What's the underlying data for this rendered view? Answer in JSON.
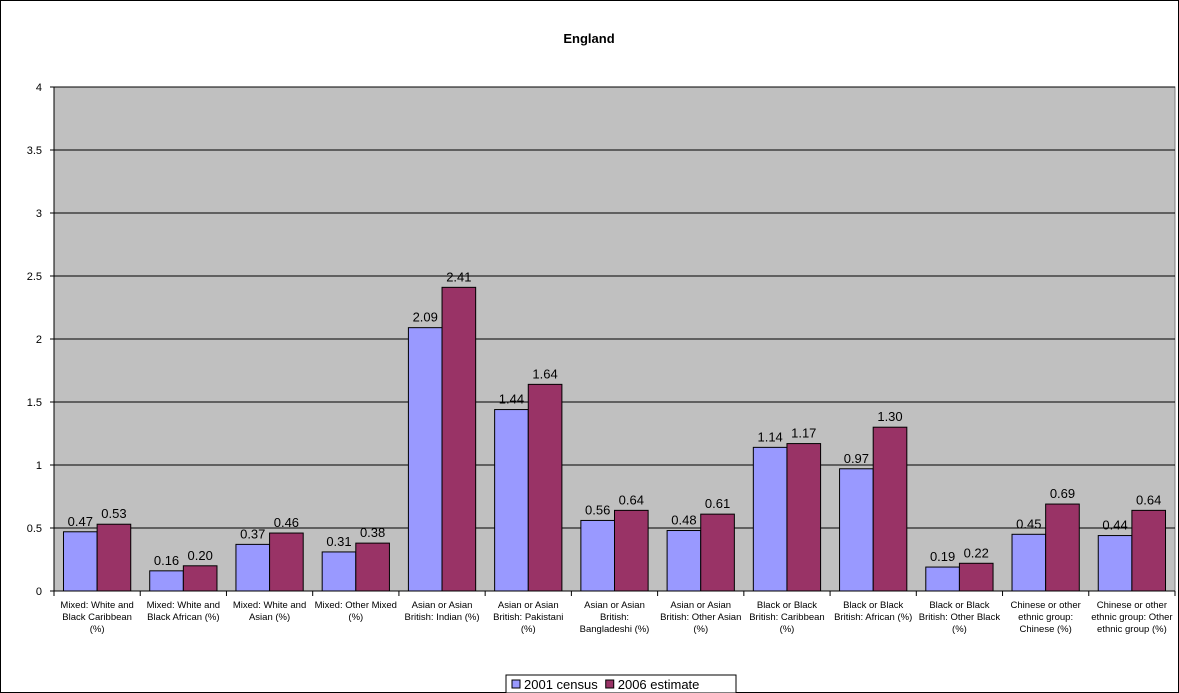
{
  "chart_data": {
    "type": "bar",
    "title": "England",
    "xlabel": "",
    "ylabel": "",
    "ylim": [
      0,
      4
    ],
    "yticks": [
      "0",
      "0.5",
      "1",
      "1.5",
      "2",
      "2.5",
      "3",
      "3.5",
      "4"
    ],
    "grid": true,
    "legend_position": "bottom",
    "categories": [
      "Mixed: White and Black Caribbean (%)",
      "Mixed: White and Black African (%)",
      "Mixed: White and Asian (%)",
      "Mixed: Other Mixed (%)",
      "Asian or Asian British: Indian (%)",
      "Asian or Asian British: Pakistani (%)",
      "Asian or Asian British: Bangladeshi (%)",
      "Asian or Asian British: Other Asian (%)",
      "Black or Black British: Caribbean (%)",
      "Black or Black British: African (%)",
      "Black or Black British: Other Black (%)",
      "Chinese or other ethnic group: Chinese (%)",
      "Chinese or other ethnic group: Other ethnic group (%)"
    ],
    "series": [
      {
        "name": "2001 census",
        "color": "#9999ff",
        "values": [
          0.47,
          0.16,
          0.37,
          0.31,
          2.09,
          1.44,
          0.56,
          0.48,
          1.14,
          0.97,
          0.19,
          0.45,
          0.44
        ],
        "labels": [
          "0.47",
          "0.16",
          "0.37",
          "0.31",
          "2.09",
          "1.44",
          "0.56",
          "0.48",
          "1.14",
          "0.97",
          "0.19",
          "0.45",
          "0.44"
        ]
      },
      {
        "name": "2006 estimate",
        "color": "#993366",
        "values": [
          0.53,
          0.2,
          0.46,
          0.38,
          2.41,
          1.64,
          0.64,
          0.61,
          1.17,
          1.3,
          0.22,
          0.69,
          0.64
        ],
        "labels": [
          "0.53",
          "0.20",
          "0.46",
          "0.38",
          "2.41",
          "1.64",
          "0.64",
          "0.61",
          "1.17",
          "1.30",
          "0.22",
          "0.69",
          "0.64"
        ]
      }
    ],
    "colors": {
      "plot_background": "#c0c0c0",
      "gridline": "#000000"
    }
  }
}
